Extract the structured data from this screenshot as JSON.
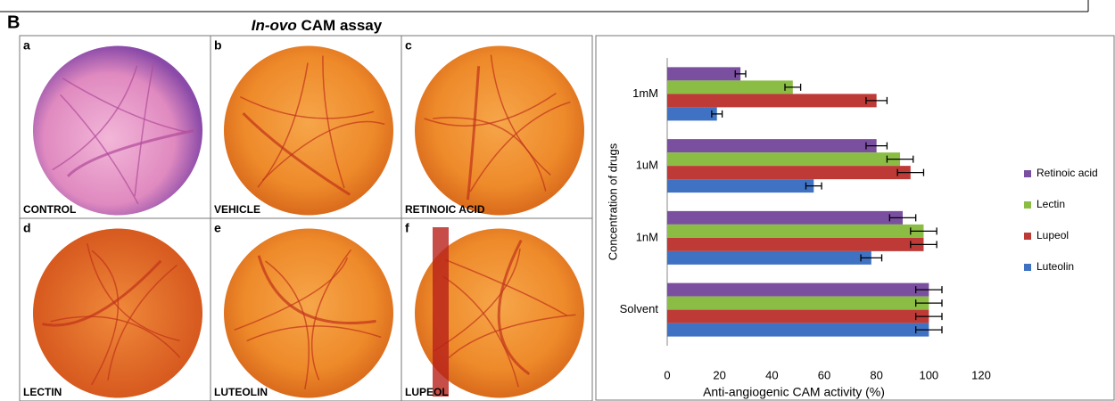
{
  "figure_label": "B",
  "title_italic": "In-ovo",
  "title_rest": "CAM assay",
  "panels": [
    {
      "letter": "a",
      "label": "CONTROL"
    },
    {
      "letter": "b",
      "label": "VEHICLE"
    },
    {
      "letter": "c",
      "label": "RETINOIC ACID"
    },
    {
      "letter": "d",
      "label": "LECTIN"
    },
    {
      "letter": "e",
      "label": "LUTEOLIN"
    },
    {
      "letter": "f",
      "label": "LUPEOL"
    }
  ],
  "chart_data": {
    "type": "hbar",
    "x_label": "Anti-angiogenic CAM activity (%)",
    "y_label": "Concentration of drugs",
    "categories": [
      "1mM",
      "1uM",
      "1nM",
      "Solvent"
    ],
    "series": [
      {
        "name": "Retinoic acid",
        "color": "#7a4fa0",
        "values": [
          28,
          80,
          90,
          100
        ],
        "errors": [
          2,
          4,
          5,
          5
        ]
      },
      {
        "name": "Lectin",
        "color": "#8bbd45",
        "values": [
          48,
          89,
          98,
          100
        ],
        "errors": [
          3,
          5,
          5,
          5
        ]
      },
      {
        "name": "Lupeol",
        "color": "#be3a37",
        "values": [
          80,
          93,
          98,
          100
        ],
        "errors": [
          4,
          5,
          5,
          5
        ]
      },
      {
        "name": "Luteolin",
        "color": "#3f72c2",
        "values": [
          19,
          56,
          78,
          100
        ],
        "errors": [
          2,
          3,
          4,
          5
        ]
      }
    ],
    "xlim": [
      0,
      120
    ],
    "xticks": [
      0,
      20,
      40,
      60,
      80,
      100,
      120
    ],
    "legend": "right"
  }
}
